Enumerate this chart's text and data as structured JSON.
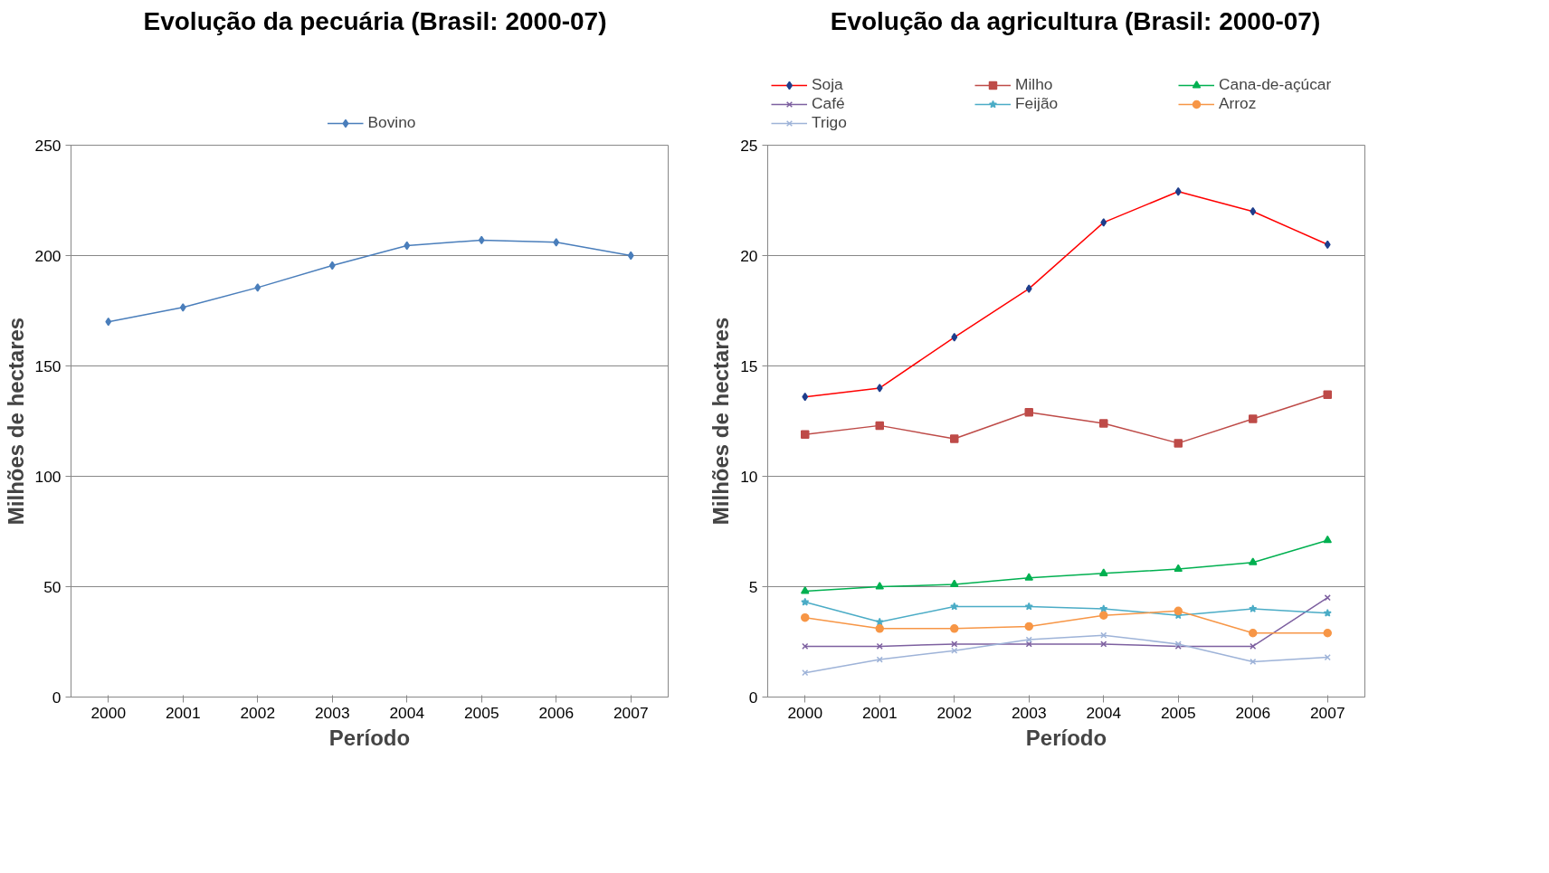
{
  "chart_data": [
    {
      "type": "line",
      "title": "Evolução da pecuária (Brasil: 2000-07)",
      "xlabel": "Período",
      "ylabel": "Milhões de hectares",
      "categories": [
        "2000",
        "2001",
        "2002",
        "2003",
        "2004",
        "2005",
        "2006",
        "2007"
      ],
      "ylim": [
        0,
        250
      ],
      "yticks": [
        0,
        50,
        100,
        150,
        200,
        250
      ],
      "grid": "y",
      "legend": "top",
      "marker": "diamond",
      "series": [
        {
          "name": "Bovino",
          "color": "#4a7ebb",
          "values": [
            170,
            176.5,
            185.5,
            195.5,
            204.5,
            207,
            206,
            200
          ]
        }
      ]
    },
    {
      "type": "line",
      "title": "Evolução da agricultura (Brasil: 2000-07)",
      "xlabel": "Período",
      "ylabel": "Milhões de hectares",
      "categories": [
        "2000",
        "2001",
        "2002",
        "2003",
        "2004",
        "2005",
        "2006",
        "2007"
      ],
      "ylim": [
        0,
        25
      ],
      "yticks": [
        0,
        5,
        10,
        15,
        20,
        25
      ],
      "grid": "y",
      "legend": "top",
      "series": [
        {
          "name": "Soja",
          "color": "#ff0000",
          "marker": "diamond",
          "values": [
            13.6,
            14.0,
            16.3,
            18.5,
            21.5,
            22.9,
            22.0,
            20.5
          ]
        },
        {
          "name": "Milho",
          "color": "#be4b48",
          "marker": "square",
          "values": [
            11.9,
            12.3,
            11.7,
            12.9,
            12.4,
            11.5,
            12.6,
            13.7
          ]
        },
        {
          "name": "Cana-de-açúcar",
          "color": "#00b050",
          "marker": "triangle",
          "values": [
            4.8,
            5.0,
            5.1,
            5.4,
            5.6,
            5.8,
            6.1,
            7.1
          ]
        },
        {
          "name": "Café",
          "color": "#7d60a0",
          "marker": "cross",
          "values": [
            2.3,
            2.3,
            2.4,
            2.4,
            2.4,
            2.3,
            2.3,
            4.5
          ]
        },
        {
          "name": "Feijão",
          "color": "#4bacc6",
          "marker": "star",
          "values": [
            4.3,
            3.4,
            4.1,
            4.1,
            4.0,
            3.7,
            4.0,
            3.8
          ]
        },
        {
          "name": "Arroz",
          "color": "#f79646",
          "marker": "circle",
          "values": [
            3.6,
            3.1,
            3.1,
            3.2,
            3.7,
            3.9,
            2.9,
            2.9
          ]
        },
        {
          "name": "Trigo",
          "color": "#9eb3d8",
          "marker": "cross",
          "values": [
            1.1,
            1.7,
            2.1,
            2.6,
            2.8,
            2.4,
            1.6,
            1.8
          ]
        }
      ]
    }
  ]
}
